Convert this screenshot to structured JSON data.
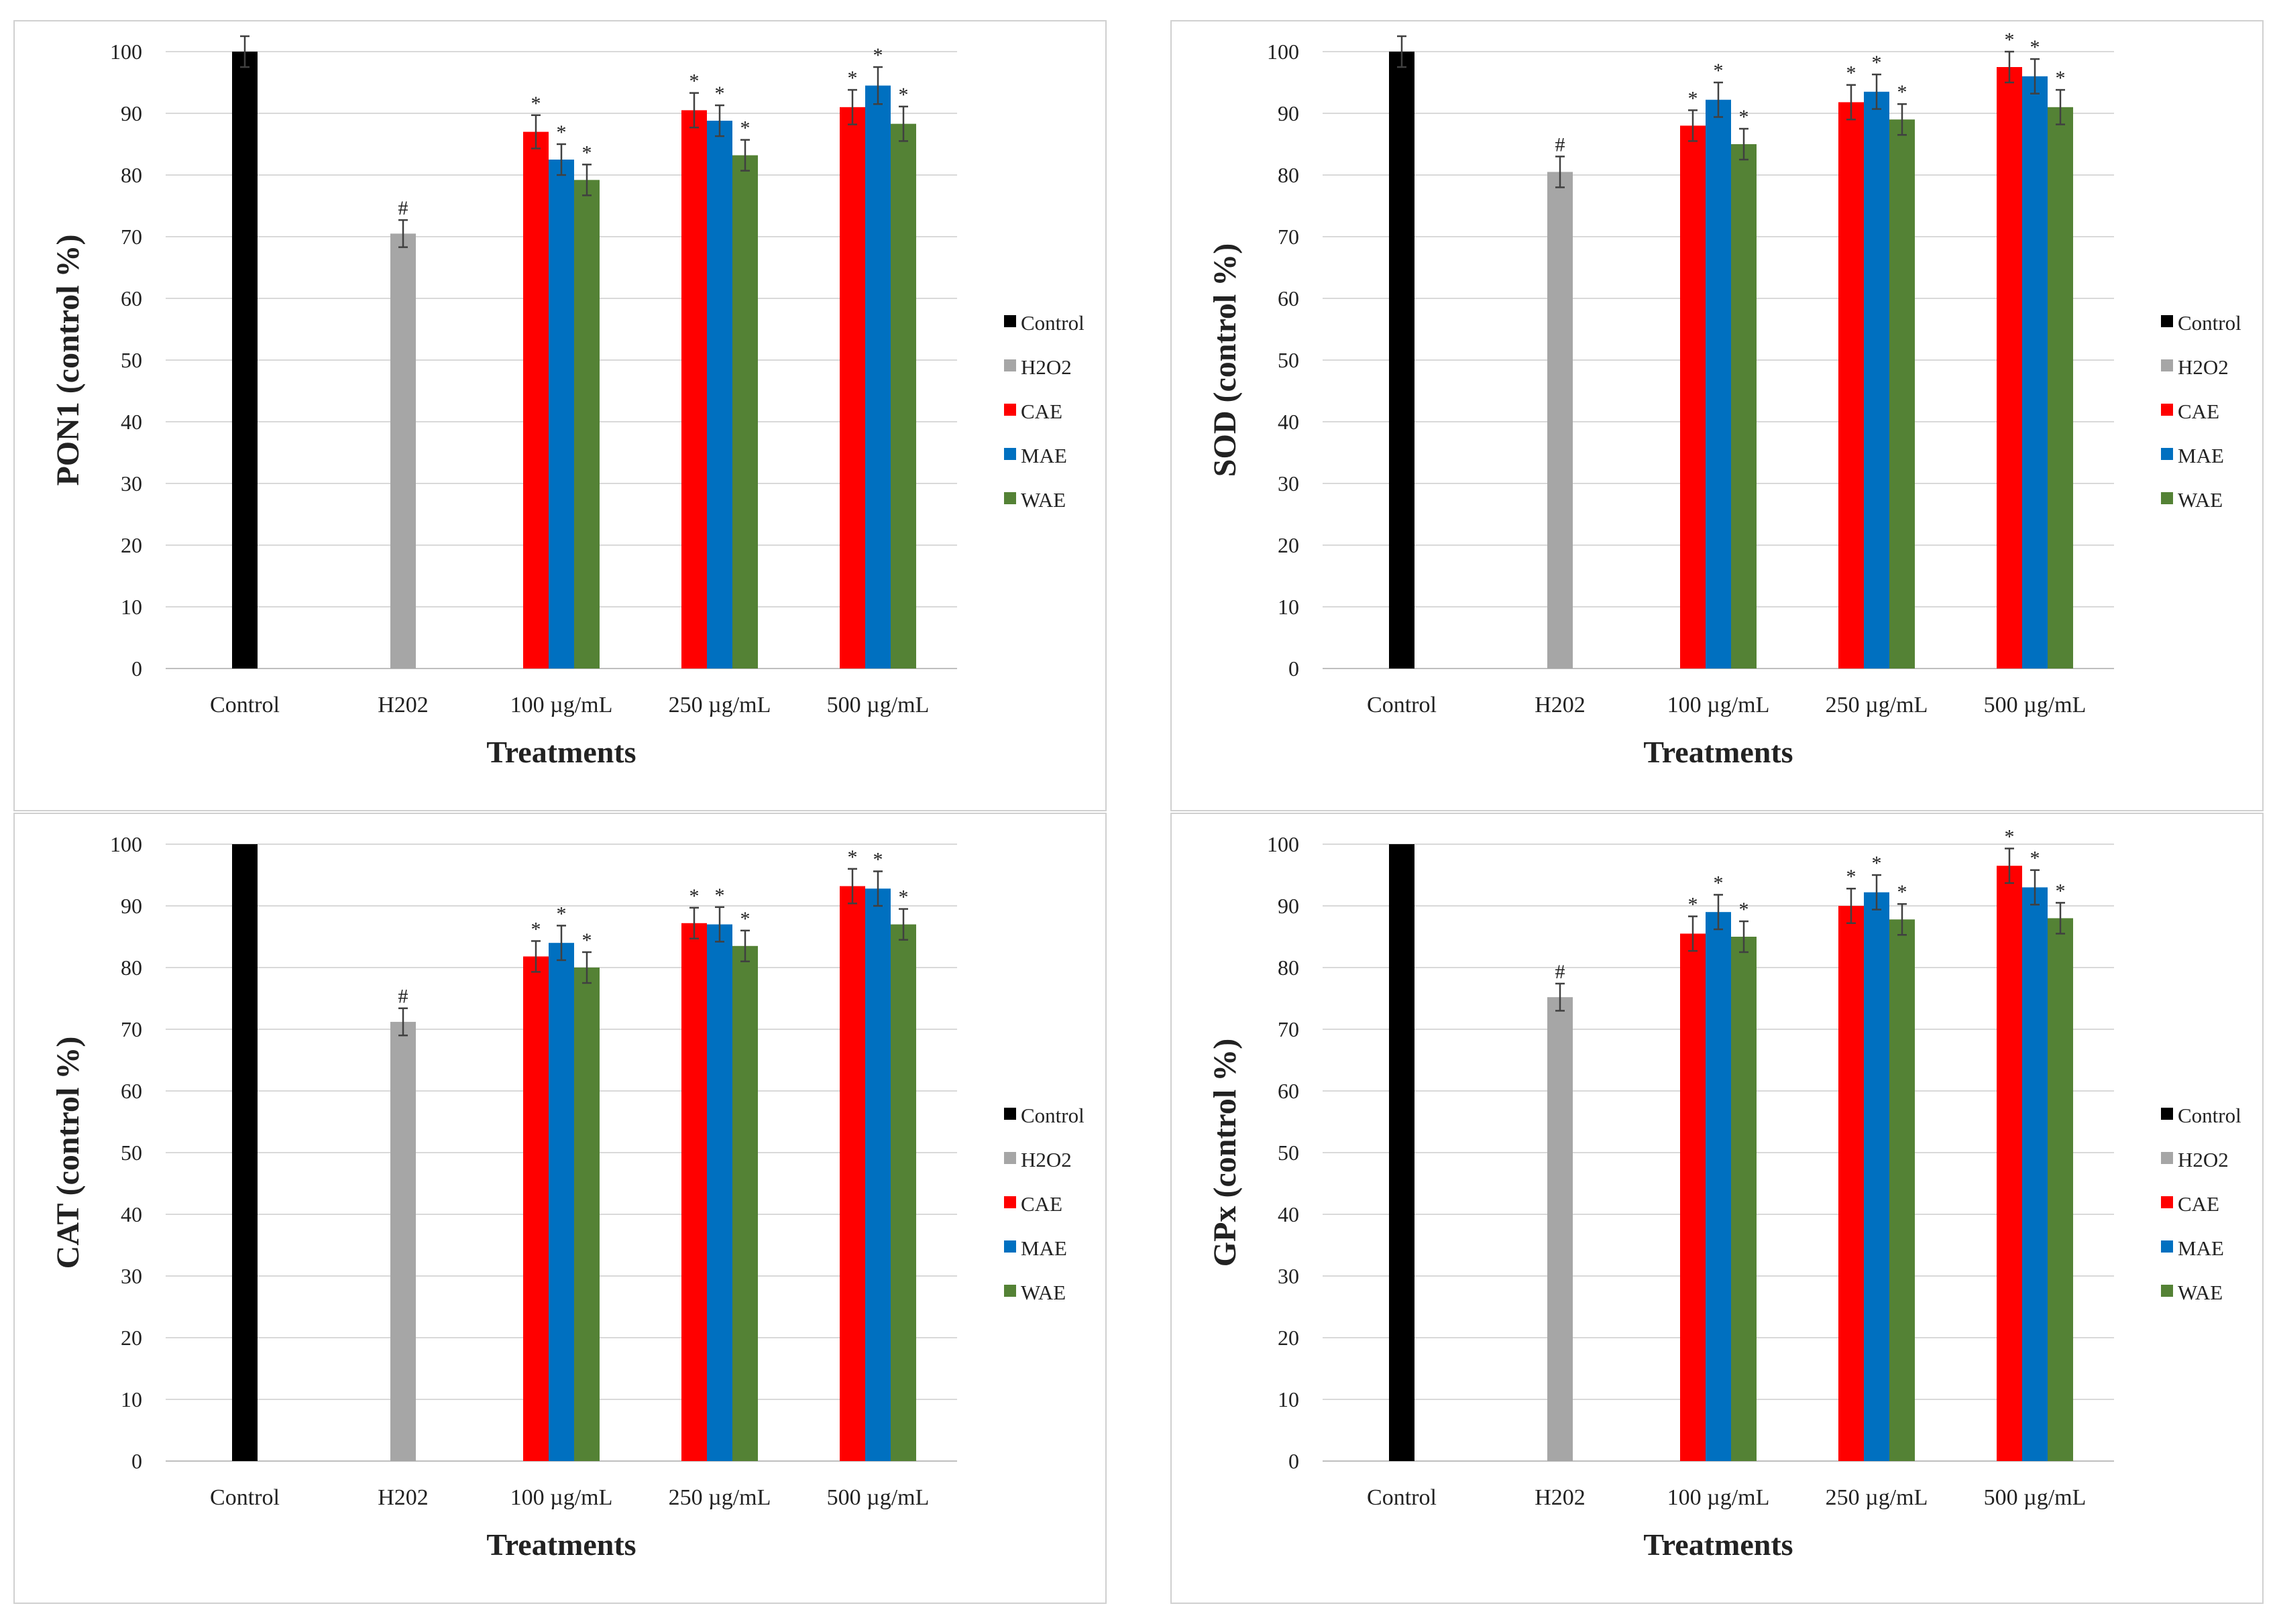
{
  "chart_data": [
    {
      "type": "bar",
      "title": "",
      "xlabel": "Treatments",
      "ylabel": "PON1 (control %)",
      "ylim": [
        0,
        100
      ],
      "yticks": [
        "0",
        "10",
        "20",
        "30",
        "40",
        "50",
        "60",
        "70",
        "80",
        "90",
        "100"
      ],
      "categories": [
        "Control",
        "H202",
        "100 µg/mL",
        "250 µg/mL",
        "500 µg/mL"
      ],
      "legend": [
        "Control",
        "H2O2",
        "CAE",
        "MAE",
        "WAE"
      ],
      "legend_position": "right",
      "series": [
        {
          "name": "Control",
          "color": "#000000",
          "values": [
            100,
            null,
            null,
            null,
            null
          ],
          "errors": [
            2.5,
            null,
            null,
            null,
            null
          ],
          "markers": [
            "",
            "",
            "",
            "",
            ""
          ]
        },
        {
          "name": "H2O2",
          "color": "#a6a6a6",
          "values": [
            null,
            70.5,
            null,
            null,
            null
          ],
          "errors": [
            null,
            2.2,
            null,
            null,
            null
          ],
          "markers": [
            "",
            "#",
            "",
            "",
            ""
          ]
        },
        {
          "name": "CAE",
          "color": "#ff0000",
          "values": [
            null,
            null,
            87,
            90.5,
            91
          ],
          "errors": [
            null,
            null,
            2.7,
            2.8,
            2.8
          ],
          "markers": [
            "",
            "",
            "*",
            "*",
            "*"
          ]
        },
        {
          "name": "MAE",
          "color": "#0070c0",
          "values": [
            null,
            null,
            82.5,
            88.8,
            94.5
          ],
          "errors": [
            null,
            null,
            2.5,
            2.5,
            3.0
          ],
          "markers": [
            "",
            "",
            "*",
            "*",
            "*"
          ]
        },
        {
          "name": "WAE",
          "color": "#548235",
          "values": [
            null,
            null,
            79.2,
            83.2,
            88.3
          ],
          "errors": [
            null,
            null,
            2.5,
            2.5,
            2.8
          ],
          "markers": [
            "",
            "",
            "*",
            "*",
            "*"
          ]
        }
      ]
    },
    {
      "type": "bar",
      "title": "",
      "xlabel": "Treatments",
      "ylabel": "SOD (control %)",
      "ylim": [
        0,
        100
      ],
      "yticks": [
        "0",
        "10",
        "20",
        "30",
        "40",
        "50",
        "60",
        "70",
        "80",
        "90",
        "100"
      ],
      "categories": [
        "Control",
        "H202",
        "100 µg/mL",
        "250 µg/mL",
        "500 µg/mL"
      ],
      "legend": [
        "Control",
        "H2O2",
        "CAE",
        "MAE",
        "WAE"
      ],
      "legend_position": "right",
      "series": [
        {
          "name": "Control",
          "color": "#000000",
          "values": [
            100,
            null,
            null,
            null,
            null
          ],
          "errors": [
            2.5,
            null,
            null,
            null,
            null
          ],
          "markers": [
            "",
            "",
            "",
            "",
            ""
          ]
        },
        {
          "name": "H2O2",
          "color": "#a6a6a6",
          "values": [
            null,
            80.5,
            null,
            null,
            null
          ],
          "errors": [
            null,
            2.5,
            null,
            null,
            null
          ],
          "markers": [
            "",
            "#",
            "",
            "",
            ""
          ]
        },
        {
          "name": "CAE",
          "color": "#ff0000",
          "values": [
            null,
            null,
            88,
            91.8,
            97.5
          ],
          "errors": [
            null,
            null,
            2.5,
            2.8,
            2.5
          ],
          "markers": [
            "",
            "",
            "*",
            "*",
            "*"
          ]
        },
        {
          "name": "MAE",
          "color": "#0070c0",
          "values": [
            null,
            null,
            92.2,
            93.5,
            96
          ],
          "errors": [
            null,
            null,
            2.8,
            2.8,
            2.8
          ],
          "markers": [
            "",
            "",
            "*",
            "*",
            "*"
          ]
        },
        {
          "name": "WAE",
          "color": "#548235",
          "values": [
            null,
            null,
            85,
            89,
            91
          ],
          "errors": [
            null,
            null,
            2.5,
            2.5,
            2.8
          ],
          "markers": [
            "",
            "",
            "*",
            "*",
            "*"
          ]
        }
      ]
    },
    {
      "type": "bar",
      "title": "",
      "xlabel": "Treatments",
      "ylabel": "CAT (control %)",
      "ylim": [
        0,
        100
      ],
      "yticks": [
        "0",
        "10",
        "20",
        "30",
        "40",
        "50",
        "60",
        "70",
        "80",
        "90",
        "100"
      ],
      "categories": [
        "Control",
        "H202",
        "100 µg/mL",
        "250 µg/mL",
        "500 µg/mL"
      ],
      "legend": [
        "Control",
        "H2O2",
        "CAE",
        "MAE",
        "WAE"
      ],
      "legend_position": "right",
      "series": [
        {
          "name": "Control",
          "color": "#000000",
          "values": [
            100,
            null,
            null,
            null,
            null
          ],
          "errors": [
            0,
            null,
            null,
            null,
            null
          ],
          "markers": [
            "",
            "",
            "",
            "",
            ""
          ]
        },
        {
          "name": "H2O2",
          "color": "#a6a6a6",
          "values": [
            null,
            71.2,
            null,
            null,
            null
          ],
          "errors": [
            null,
            2.2,
            null,
            null,
            null
          ],
          "markers": [
            "",
            "#",
            "",
            "",
            ""
          ]
        },
        {
          "name": "CAE",
          "color": "#ff0000",
          "values": [
            null,
            null,
            81.8,
            87.2,
            93.2
          ],
          "errors": [
            null,
            null,
            2.5,
            2.5,
            2.8
          ],
          "markers": [
            "",
            "",
            "*",
            "*",
            "*"
          ]
        },
        {
          "name": "MAE",
          "color": "#0070c0",
          "values": [
            null,
            null,
            84,
            87,
            92.8
          ],
          "errors": [
            null,
            null,
            2.8,
            2.8,
            2.8
          ],
          "markers": [
            "",
            "",
            "*",
            "*",
            "*"
          ]
        },
        {
          "name": "WAE",
          "color": "#548235",
          "values": [
            null,
            null,
            80,
            83.5,
            87
          ],
          "errors": [
            null,
            null,
            2.5,
            2.5,
            2.5
          ],
          "markers": [
            "",
            "",
            "*",
            "*",
            "*"
          ]
        }
      ]
    },
    {
      "type": "bar",
      "title": "",
      "xlabel": "Treatments",
      "ylabel": "GPx (control %)",
      "ylim": [
        0,
        100
      ],
      "yticks": [
        "0",
        "10",
        "20",
        "30",
        "40",
        "50",
        "60",
        "70",
        "80",
        "90",
        "100"
      ],
      "categories": [
        "Control",
        "H202",
        "100 µg/mL",
        "250 µg/mL",
        "500 µg/mL"
      ],
      "legend": [
        "Control",
        "H2O2",
        "CAE",
        "MAE",
        "WAE"
      ],
      "legend_position": "right",
      "series": [
        {
          "name": "Control",
          "color": "#000000",
          "values": [
            100,
            null,
            null,
            null,
            null
          ],
          "errors": [
            0,
            null,
            null,
            null,
            null
          ],
          "markers": [
            "",
            "",
            "",
            "",
            ""
          ]
        },
        {
          "name": "H2O2",
          "color": "#a6a6a6",
          "values": [
            null,
            75.2,
            null,
            null,
            null
          ],
          "errors": [
            null,
            2.2,
            null,
            null,
            null
          ],
          "markers": [
            "",
            "#",
            "",
            "",
            ""
          ]
        },
        {
          "name": "CAE",
          "color": "#ff0000",
          "values": [
            null,
            null,
            85.5,
            90,
            96.5
          ],
          "errors": [
            null,
            null,
            2.8,
            2.8,
            2.8
          ],
          "markers": [
            "",
            "",
            "*",
            "*",
            "*"
          ]
        },
        {
          "name": "MAE",
          "color": "#0070c0",
          "values": [
            null,
            null,
            89,
            92.2,
            93
          ],
          "errors": [
            null,
            null,
            2.8,
            2.8,
            2.8
          ],
          "markers": [
            "",
            "",
            "*",
            "*",
            "*"
          ]
        },
        {
          "name": "WAE",
          "color": "#548235",
          "values": [
            null,
            null,
            85,
            87.8,
            88
          ],
          "errors": [
            null,
            null,
            2.5,
            2.5,
            2.5
          ],
          "markers": [
            "",
            "",
            "*",
            "*",
            "*"
          ]
        }
      ]
    }
  ]
}
